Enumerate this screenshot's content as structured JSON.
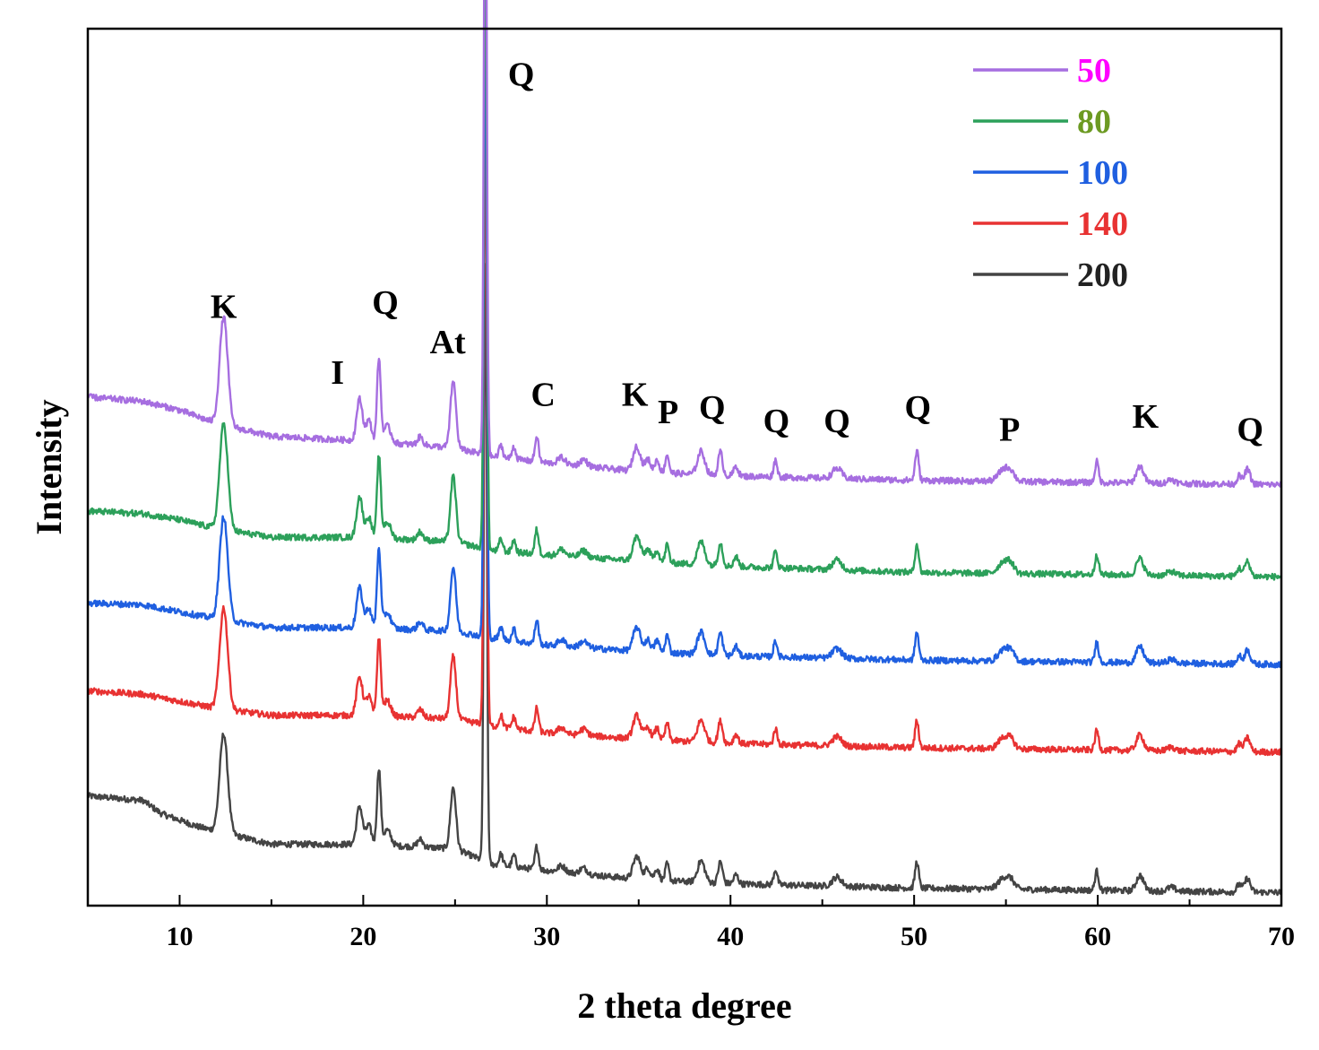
{
  "chart_data": {
    "type": "line",
    "title": "",
    "xlabel": "2 theta degree",
    "ylabel": "Intensity",
    "xlim": [
      5,
      70
    ],
    "xticks": [
      10,
      20,
      30,
      40,
      50,
      60,
      70
    ],
    "ylim": [
      0,
      10
    ],
    "y_ticks_shown": false,
    "legend_position": "top-right",
    "series": [
      {
        "name": "50",
        "color": "#a66ee0",
        "label_color": "#ff00ff",
        "offset": 4.8,
        "baseline": [
          [
            5,
            1.0
          ],
          [
            8,
            0.95
          ],
          [
            10,
            0.85
          ],
          [
            12,
            0.7
          ],
          [
            15,
            0.55
          ],
          [
            20,
            0.5
          ],
          [
            25,
            0.42
          ],
          [
            27,
            0.32
          ],
          [
            30,
            0.25
          ],
          [
            35,
            0.15
          ],
          [
            40,
            0.1
          ],
          [
            50,
            0.05
          ],
          [
            70,
            0.0
          ]
        ]
      },
      {
        "name": "80",
        "color": "#2ca05a",
        "label_color": "#6c9a22",
        "offset": 3.75,
        "baseline": [
          [
            5,
            0.75
          ],
          [
            8,
            0.72
          ],
          [
            10,
            0.65
          ],
          [
            12,
            0.55
          ],
          [
            15,
            0.45
          ],
          [
            20,
            0.45
          ],
          [
            25,
            0.4
          ],
          [
            27,
            0.3
          ],
          [
            30,
            0.25
          ],
          [
            35,
            0.18
          ],
          [
            40,
            0.12
          ],
          [
            50,
            0.05
          ],
          [
            70,
            0.0
          ]
        ]
      },
      {
        "name": "100",
        "color": "#1f5fe0",
        "label_color": "#1f5fe0",
        "offset": 2.75,
        "baseline": [
          [
            5,
            0.7
          ],
          [
            8,
            0.68
          ],
          [
            10,
            0.6
          ],
          [
            12,
            0.52
          ],
          [
            15,
            0.42
          ],
          [
            20,
            0.42
          ],
          [
            25,
            0.38
          ],
          [
            27,
            0.3
          ],
          [
            30,
            0.22
          ],
          [
            35,
            0.15
          ],
          [
            40,
            0.1
          ],
          [
            50,
            0.05
          ],
          [
            70,
            0.0
          ]
        ]
      },
      {
        "name": "140",
        "color": "#e83232",
        "label_color": "#e83232",
        "offset": 1.75,
        "baseline": [
          [
            5,
            0.7
          ],
          [
            8,
            0.66
          ],
          [
            10,
            0.58
          ],
          [
            12,
            0.5
          ],
          [
            15,
            0.42
          ],
          [
            20,
            0.42
          ],
          [
            25,
            0.38
          ],
          [
            27,
            0.3
          ],
          [
            30,
            0.22
          ],
          [
            35,
            0.15
          ],
          [
            40,
            0.1
          ],
          [
            50,
            0.05
          ],
          [
            70,
            0.0
          ]
        ]
      },
      {
        "name": "200",
        "color": "#444444",
        "label_color": "#222222",
        "offset": 0.15,
        "baseline": [
          [
            5,
            1.1
          ],
          [
            8,
            1.05
          ],
          [
            9,
            0.9
          ],
          [
            11,
            0.75
          ],
          [
            15,
            0.55
          ],
          [
            20,
            0.55
          ],
          [
            25,
            0.5
          ],
          [
            27,
            0.32
          ],
          [
            30,
            0.25
          ],
          [
            35,
            0.15
          ],
          [
            40,
            0.1
          ],
          [
            50,
            0.05
          ],
          [
            70,
            0.0
          ]
        ]
      }
    ],
    "peaks": [
      {
        "x": 12.4,
        "h": 1.3,
        "w": 0.22
      },
      {
        "x": 19.8,
        "h": 0.5,
        "w": 0.16
      },
      {
        "x": 20.3,
        "h": 0.25,
        "w": 0.15
      },
      {
        "x": 20.85,
        "h": 1.0,
        "w": 0.1
      },
      {
        "x": 21.3,
        "h": 0.2,
        "w": 0.2
      },
      {
        "x": 23.1,
        "h": 0.1,
        "w": 0.15
      },
      {
        "x": 24.9,
        "h": 0.8,
        "w": 0.15
      },
      {
        "x": 26.65,
        "h": 8.0,
        "w": 0.08
      },
      {
        "x": 27.5,
        "h": 0.15,
        "w": 0.1
      },
      {
        "x": 28.2,
        "h": 0.15,
        "w": 0.1
      },
      {
        "x": 29.45,
        "h": 0.3,
        "w": 0.1
      },
      {
        "x": 30.8,
        "h": 0.08,
        "w": 0.2
      },
      {
        "x": 32.0,
        "h": 0.08,
        "w": 0.2
      },
      {
        "x": 34.9,
        "h": 0.3,
        "w": 0.2
      },
      {
        "x": 35.5,
        "h": 0.15,
        "w": 0.15
      },
      {
        "x": 36.0,
        "h": 0.15,
        "w": 0.12
      },
      {
        "x": 36.55,
        "h": 0.22,
        "w": 0.1
      },
      {
        "x": 38.4,
        "h": 0.28,
        "w": 0.2
      },
      {
        "x": 39.45,
        "h": 0.28,
        "w": 0.12
      },
      {
        "x": 40.3,
        "h": 0.12,
        "w": 0.12
      },
      {
        "x": 42.45,
        "h": 0.2,
        "w": 0.1
      },
      {
        "x": 45.8,
        "h": 0.12,
        "w": 0.25
      },
      {
        "x": 50.15,
        "h": 0.35,
        "w": 0.1
      },
      {
        "x": 54.9,
        "h": 0.15,
        "w": 0.3
      },
      {
        "x": 55.3,
        "h": 0.08,
        "w": 0.2
      },
      {
        "x": 59.95,
        "h": 0.25,
        "w": 0.1
      },
      {
        "x": 62.3,
        "h": 0.2,
        "w": 0.2
      },
      {
        "x": 64.0,
        "h": 0.05,
        "w": 0.2
      },
      {
        "x": 67.7,
        "h": 0.1,
        "w": 0.12
      },
      {
        "x": 68.15,
        "h": 0.18,
        "w": 0.15
      }
    ],
    "annotations": [
      {
        "text": "K",
        "x": 12.4,
        "y": 6.7
      },
      {
        "text": "I",
        "x": 18.6,
        "y": 5.95
      },
      {
        "text": "Q",
        "x": 21.2,
        "y": 6.75
      },
      {
        "text": "At",
        "x": 24.6,
        "y": 6.3
      },
      {
        "text": "Q",
        "x": 28.6,
        "y": 9.35
      },
      {
        "text": "C",
        "x": 29.8,
        "y": 5.7
      },
      {
        "text": "K",
        "x": 34.8,
        "y": 5.7
      },
      {
        "text": "P",
        "x": 36.6,
        "y": 5.5
      },
      {
        "text": "Q",
        "x": 39.0,
        "y": 5.55
      },
      {
        "text": "Q",
        "x": 42.5,
        "y": 5.4
      },
      {
        "text": "Q",
        "x": 45.8,
        "y": 5.4
      },
      {
        "text": "Q",
        "x": 50.2,
        "y": 5.55
      },
      {
        "text": "P",
        "x": 55.2,
        "y": 5.3
      },
      {
        "text": "K",
        "x": 62.6,
        "y": 5.45
      },
      {
        "text": "Q",
        "x": 68.3,
        "y": 5.3
      }
    ]
  }
}
